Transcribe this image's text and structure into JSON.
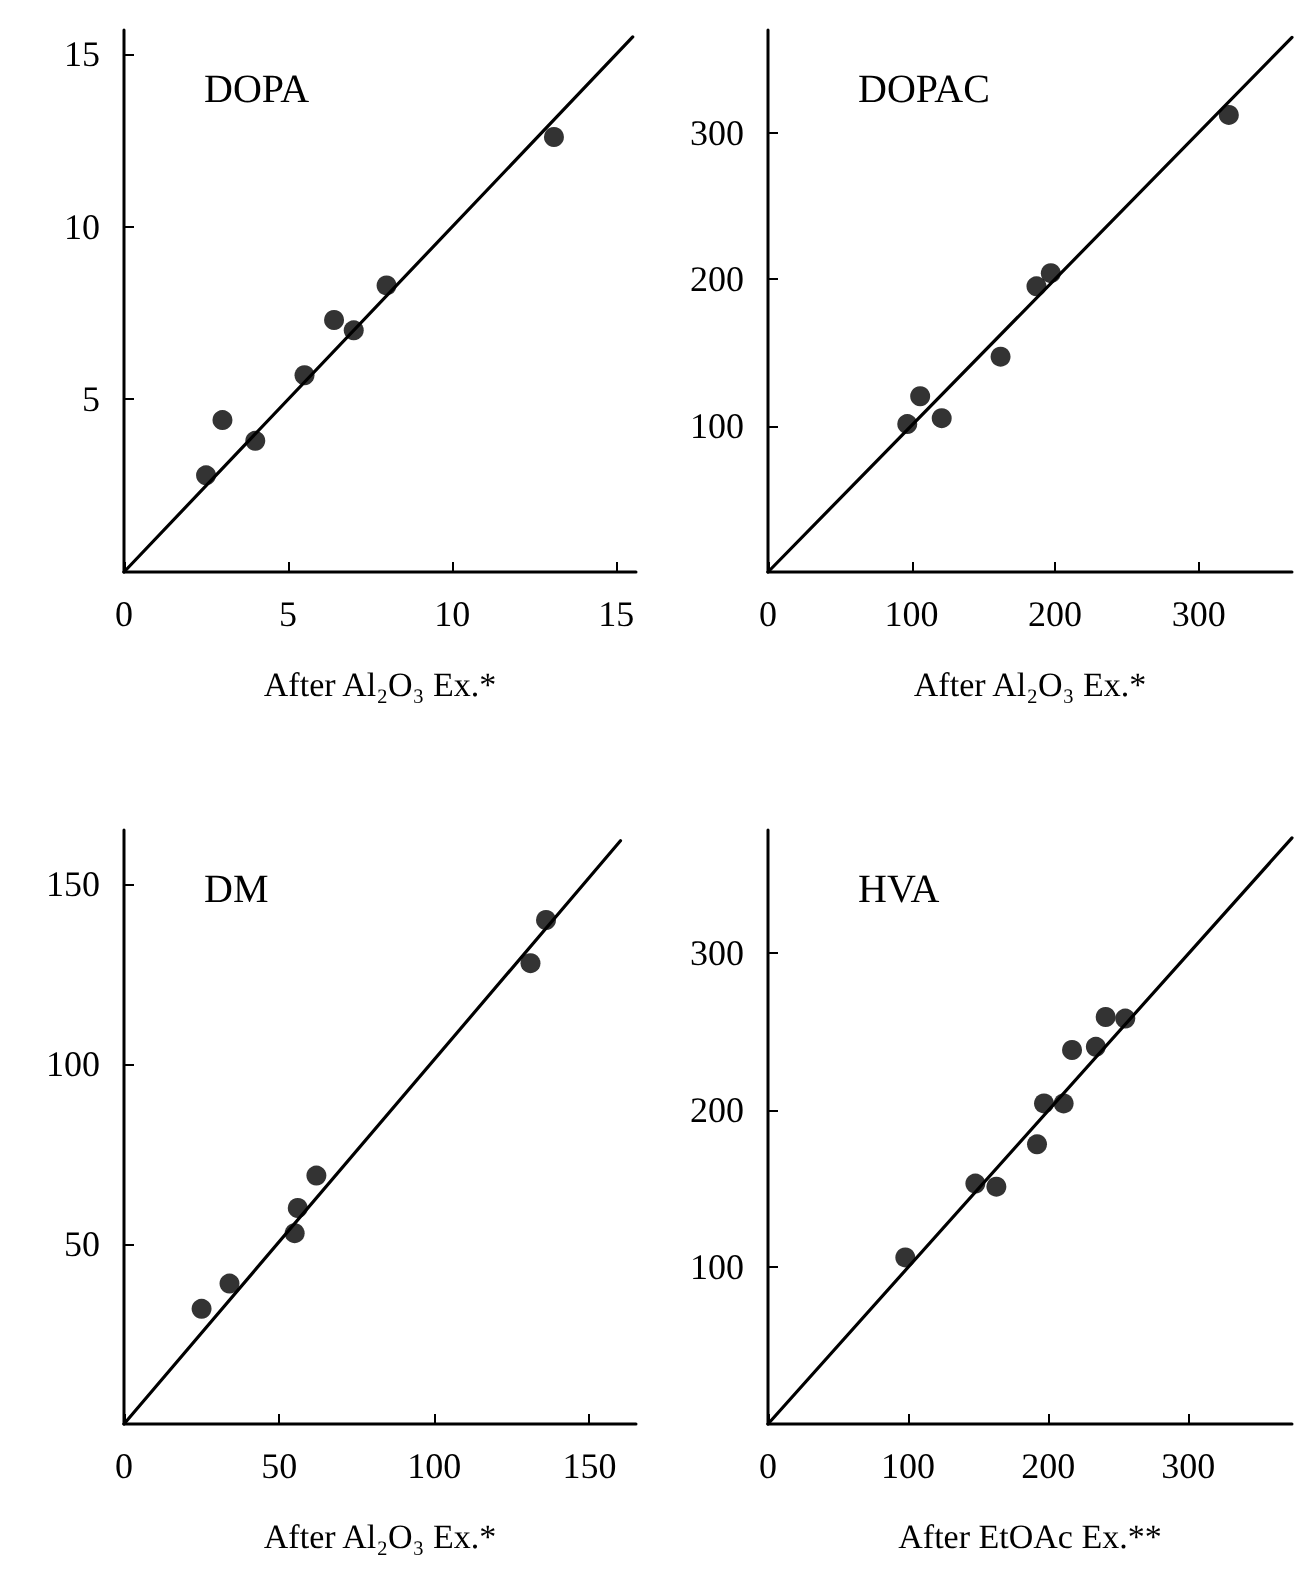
{
  "chart_data": [
    {
      "type": "scatter",
      "title": "DOPA",
      "xlabel": "After Al₂O₃ Ex.*",
      "xlim": [
        0,
        15.6
      ],
      "ylim": [
        0,
        15.7
      ],
      "xticks": [
        0,
        5,
        10,
        15
      ],
      "yticks": [
        5,
        10,
        15
      ],
      "grid": false,
      "line_style": "solid",
      "series": [
        {
          "type": "scatter",
          "marker": "circle",
          "color": "#000000",
          "x": [
            2.5,
            3.0,
            4.0,
            5.5,
            6.4,
            7.0,
            8.0,
            13.1
          ],
          "values": [
            2.8,
            4.4,
            3.8,
            5.7,
            7.3,
            7.0,
            8.3,
            12.6
          ]
        },
        {
          "type": "line",
          "marker": "none",
          "color": "#000000",
          "x": [
            0,
            15.5
          ],
          "values": [
            0,
            15.5
          ]
        }
      ]
    },
    {
      "type": "scatter",
      "title": "DOPAC",
      "xlabel": "After Al₂O₃ Ex.*",
      "xlim": [
        0,
        365
      ],
      "ylim": [
        0,
        370
      ],
      "xticks": [
        0,
        100,
        200,
        300
      ],
      "yticks": [
        100,
        200,
        300
      ],
      "grid": false,
      "line_style": "solid",
      "series": [
        {
          "type": "scatter",
          "marker": "circle",
          "color": "#000000",
          "x": [
            97,
            106,
            121,
            162,
            187,
            197,
            321
          ],
          "values": [
            101,
            120,
            105,
            147,
            195,
            204,
            312
          ]
        },
        {
          "type": "line",
          "marker": "none",
          "color": "#000000",
          "x": [
            0,
            365
          ],
          "values": [
            0,
            365
          ]
        }
      ]
    },
    {
      "type": "scatter",
      "title": "DM",
      "xlabel": "After Al₂O₃ Ex.*",
      "xlim": [
        0,
        165
      ],
      "ylim": [
        0,
        165
      ],
      "xticks": [
        0,
        50,
        100,
        150
      ],
      "yticks": [
        50,
        100,
        150
      ],
      "grid": false,
      "line_style": "solid",
      "series": [
        {
          "type": "scatter",
          "marker": "circle",
          "color": "#000000",
          "x": [
            25,
            34,
            55,
            56,
            62,
            131,
            136
          ],
          "values": [
            32,
            39,
            53,
            60,
            69,
            128,
            140
          ]
        },
        {
          "type": "line",
          "marker": "none",
          "color": "#000000",
          "x": [
            0,
            160
          ],
          "values": [
            0,
            162
          ]
        }
      ]
    },
    {
      "type": "scatter",
      "title": "HVA",
      "xlabel": "After EtOAc Ex.**",
      "xlim": [
        0,
        374
      ],
      "ylim": [
        0,
        378
      ],
      "xticks": [
        0,
        100,
        200,
        300
      ],
      "yticks": [
        100,
        200,
        300
      ],
      "grid": false,
      "line_style": "solid",
      "series": [
        {
          "type": "scatter",
          "marker": "circle",
          "color": "#000000",
          "x": [
            98,
            148,
            163,
            192,
            197,
            211,
            217,
            234,
            241,
            255
          ],
          "values": [
            106,
            153,
            151,
            178,
            204,
            204,
            238,
            240,
            259,
            258
          ]
        },
        {
          "type": "line",
          "marker": "none",
          "color": "#000000",
          "x": [
            0,
            374
          ],
          "values": [
            0,
            373
          ]
        }
      ]
    }
  ]
}
